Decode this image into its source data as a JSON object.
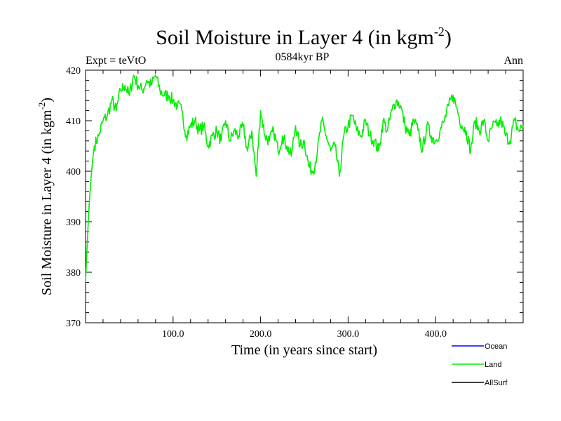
{
  "chart_data": {
    "type": "line",
    "title": "Soil Moisture in Layer 4 (in kgm",
    "title_sup": "-2",
    "title_close": ")",
    "subtitle": "0584kyr BP",
    "left_label": "Expt = teVtO",
    "right_label": "Ann",
    "xlabel": "Time (in years since start)",
    "ylabel": "Soil Moisture in Layer 4 (in kgm",
    "ylabel_sup": "-2",
    "ylabel_close": ")",
    "xlim": [
      0,
      500
    ],
    "ylim": [
      370,
      420
    ],
    "x_ticks": [
      100,
      200,
      300,
      400
    ],
    "x_tick_labels": [
      "100.0",
      "200.0",
      "300.0",
      "400.0"
    ],
    "y_ticks": [
      370,
      380,
      390,
      400,
      410,
      420
    ],
    "y_tick_labels": [
      "370",
      "380",
      "390",
      "400",
      "410",
      "420"
    ],
    "legend": [
      {
        "name": "Ocean",
        "color": "#0000ff"
      },
      {
        "name": "Land",
        "color": "#00ee00"
      },
      {
        "name": "AllSurf",
        "color": "#000000"
      }
    ],
    "series": [
      {
        "name": "Land",
        "color": "#00ee00",
        "x": [
          0,
          2,
          4,
          6,
          8,
          10,
          15,
          20,
          25,
          30,
          35,
          40,
          45,
          50,
          55,
          60,
          65,
          70,
          75,
          80,
          85,
          90,
          95,
          100,
          105,
          110,
          115,
          120,
          125,
          130,
          135,
          140,
          145,
          150,
          155,
          160,
          165,
          170,
          175,
          180,
          185,
          190,
          195,
          200,
          205,
          210,
          215,
          220,
          225,
          230,
          235,
          240,
          245,
          250,
          255,
          260,
          265,
          270,
          275,
          280,
          285,
          290,
          295,
          300,
          305,
          310,
          315,
          320,
          325,
          330,
          335,
          340,
          345,
          350,
          355,
          360,
          365,
          370,
          375,
          380,
          385,
          390,
          395,
          400,
          405,
          410,
          415,
          420,
          425,
          430,
          435,
          440,
          445,
          450,
          455,
          460,
          465,
          470,
          475,
          480,
          485,
          490,
          495,
          500
        ],
        "y": [
          378,
          386,
          393,
          398,
          402,
          405,
          407,
          410,
          411,
          414,
          412,
          416,
          417,
          415,
          419,
          417,
          416,
          418,
          417,
          419,
          416,
          415,
          415,
          414,
          413,
          412,
          407,
          409,
          410,
          408,
          409,
          405,
          407,
          408,
          406,
          410,
          406,
          408,
          407,
          409,
          404,
          408,
          399,
          412,
          407,
          406,
          408,
          404,
          407,
          405,
          403,
          409,
          405,
          406,
          401,
          400,
          404,
          410,
          407,
          404,
          405,
          399,
          407,
          409,
          411,
          408,
          407,
          410,
          407,
          406,
          404,
          410,
          408,
          412,
          414,
          413,
          409,
          407,
          410,
          408,
          404,
          409,
          407,
          406,
          408,
          410,
          413,
          415,
          412,
          409,
          408,
          404,
          410,
          408,
          410,
          406,
          409,
          409,
          410,
          407,
          406,
          410,
          408,
          409
        ]
      }
    ]
  }
}
